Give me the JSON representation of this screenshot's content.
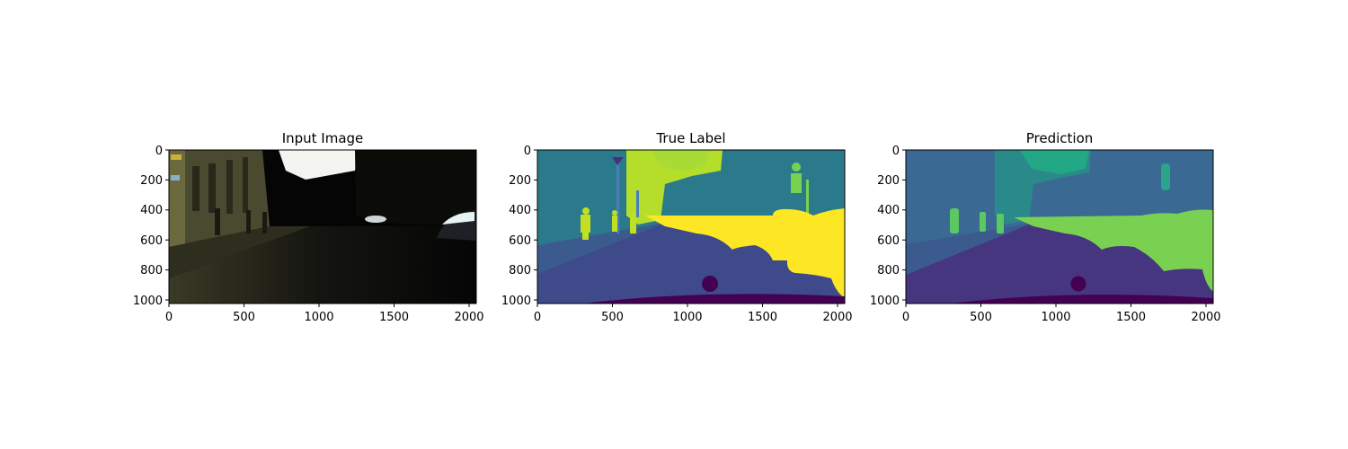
{
  "panels": [
    {
      "title": "Input Image",
      "x_ticks": [
        "0",
        "500",
        "1000",
        "1500",
        "2000"
      ],
      "y_ticks": [
        "0",
        "200",
        "400",
        "600",
        "800",
        "1000"
      ]
    },
    {
      "title": "True Label",
      "x_ticks": [
        "0",
        "500",
        "1000",
        "1500",
        "2000"
      ],
      "y_ticks": [
        "0",
        "200",
        "400",
        "600",
        "800",
        "1000"
      ]
    },
    {
      "title": "Prediction",
      "x_ticks": [
        "0",
        "500",
        "1000",
        "1500",
        "2000"
      ],
      "y_ticks": [
        "0",
        "200",
        "400",
        "600",
        "800",
        "1000"
      ]
    }
  ],
  "axis_ranges": {
    "x": [
      0,
      2048
    ],
    "y": [
      1024,
      0
    ]
  },
  "colors": {
    "sky": "#2b7a8c",
    "road": "#3f4a8a",
    "sidewalk": "#3b5b8f",
    "vehicle": "#fde725",
    "vehicle_pred": "#7ad151",
    "vegetation": "#b5de2b",
    "vegetation_pred": "#22a884",
    "person": "#c2df23",
    "ego": "#440154"
  }
}
